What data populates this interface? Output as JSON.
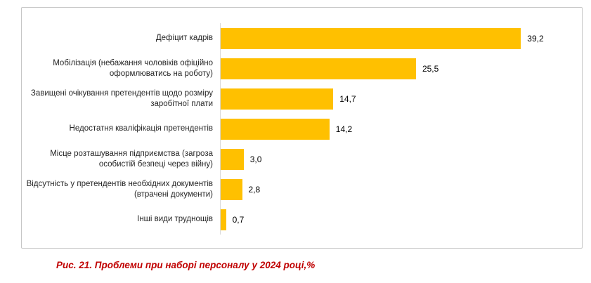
{
  "chart_data": {
    "type": "bar",
    "orientation": "horizontal",
    "title": "",
    "xlabel": "",
    "ylabel": "",
    "xlim": [
      0,
      40
    ],
    "grid": false,
    "legend": "none",
    "bar_color": "#FFC000",
    "categories": [
      "Дефіцит кадрів",
      "Мобілізація (небажання чоловіків офіційно оформлюватись на роботу)",
      "Завищені очікування претендентів щодо розміру заробітної плати",
      "Недостатня кваліфікація претендентів",
      "Місце розташування підприємства (загроза особистій безпеці через війну)",
      "Відсутність у претендентів необхідних документів (втрачені документи)",
      "Інші види труднощів"
    ],
    "values": [
      39.2,
      25.5,
      14.7,
      14.2,
      3.0,
      2.8,
      0.7
    ],
    "value_labels": [
      "39,2",
      "25,5",
      "14,7",
      "14,2",
      "3,0",
      "2,8",
      "0,7"
    ]
  },
  "caption": {
    "text": "Рис. 21. Проблеми при наборі персоналу у 2024 році,%"
  }
}
